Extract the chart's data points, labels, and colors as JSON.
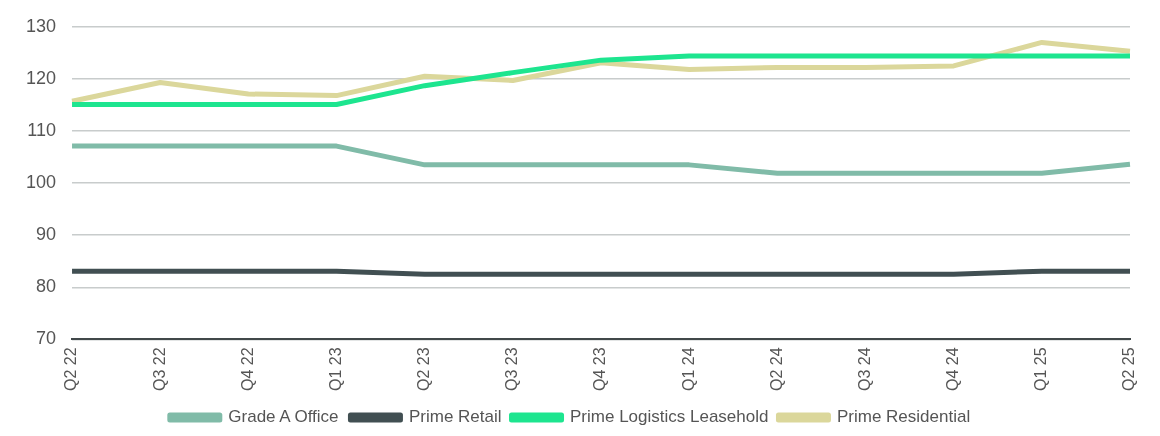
{
  "chart_data": {
    "type": "line",
    "categories": [
      "Q2 22",
      "Q3 22",
      "Q4 22",
      "Q1 23",
      "Q2 23",
      "Q3 23",
      "Q4 23",
      "Q1 24",
      "Q2 24",
      "Q3 24",
      "Q4 24",
      "Q1 25",
      "Q2 25"
    ],
    "ylim": [
      70,
      130
    ],
    "yticks": [
      70,
      80,
      90,
      100,
      110,
      120,
      130
    ],
    "grid": "y",
    "legend": "bottom",
    "marker": "none",
    "line_style": "solid",
    "series": [
      {
        "name": "Grade A Office",
        "color": "#80bba8",
        "values": [
          107.1,
          107.1,
          107.1,
          107.1,
          103.5,
          103.5,
          103.5,
          103.5,
          101.9,
          101.9,
          101.9,
          101.9,
          103.6
        ]
      },
      {
        "name": "Prime Retail",
        "color": "#414f52",
        "values": [
          83.1,
          83.1,
          83.1,
          83.1,
          82.5,
          82.5,
          82.5,
          82.5,
          82.5,
          82.5,
          82.5,
          83.1,
          83.1
        ]
      },
      {
        "name": "Prime Logistics Leasehold",
        "color": "#1de58f",
        "values": [
          115.1,
          115.1,
          115.1,
          115.1,
          118.7,
          121.2,
          123.6,
          124.4,
          124.4,
          124.4,
          124.4,
          124.4,
          124.4
        ]
      },
      {
        "name": "Prime Residential",
        "color": "#dbd79b",
        "values": [
          115.7,
          119.3,
          117.1,
          116.8,
          120.5,
          119.7,
          123.1,
          121.8,
          122.2,
          122.2,
          122.5,
          127.0,
          125.3
        ]
      }
    ]
  }
}
